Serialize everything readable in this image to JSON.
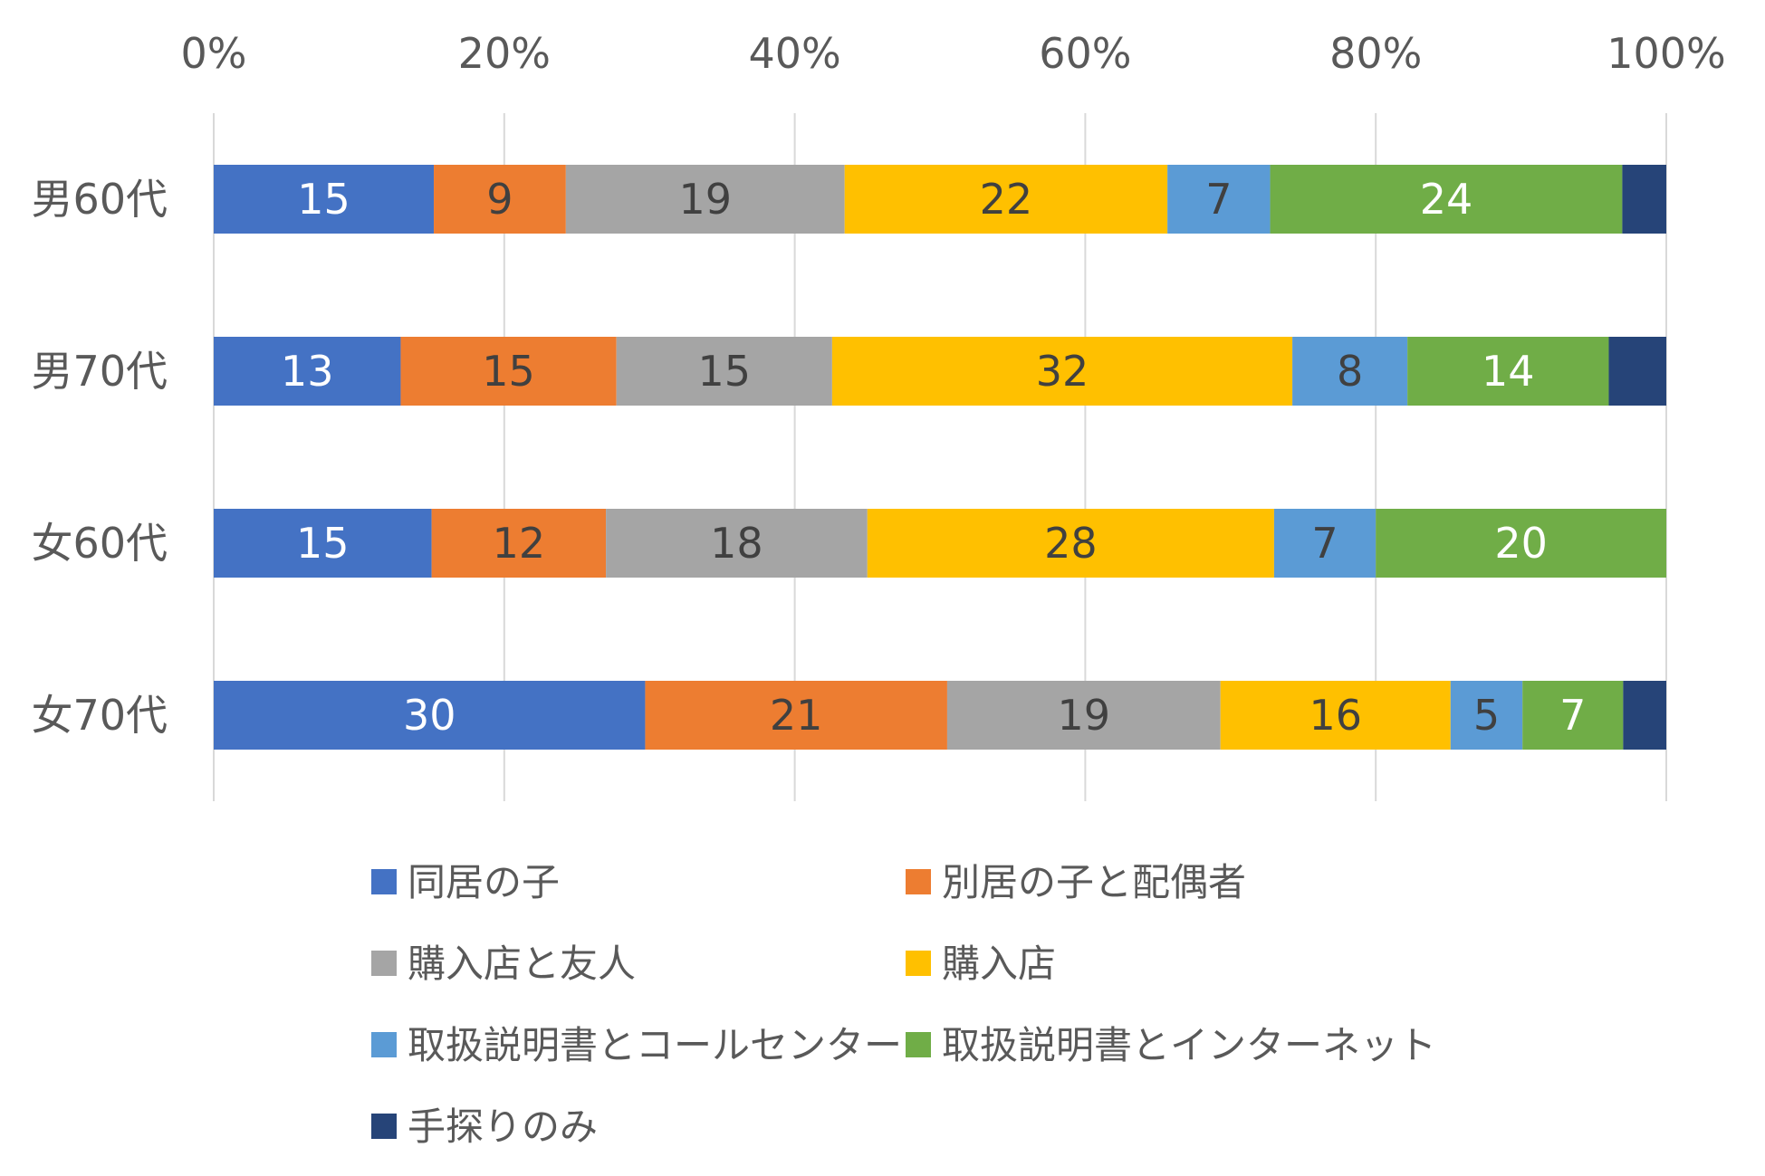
{
  "chart_data": {
    "type": "bar",
    "orientation": "horizontal",
    "stacked": "percent",
    "categories": [
      "男60代",
      "男70代",
      "女60代",
      "女70代"
    ],
    "series": [
      {
        "name": "同居の子",
        "color": "#4472C4",
        "label_color": "#ffffff",
        "values": [
          15,
          13,
          15,
          30
        ]
      },
      {
        "name": "別居の子と配偶者",
        "color": "#ED7D31",
        "label_color": "#404040",
        "values": [
          9,
          15,
          12,
          21
        ]
      },
      {
        "name": "購入店と友人",
        "color": "#A5A5A5",
        "label_color": "#404040",
        "values": [
          19,
          15,
          18,
          19
        ]
      },
      {
        "name": "購入店",
        "color": "#FFC000",
        "label_color": "#404040",
        "values": [
          22,
          32,
          28,
          16
        ]
      },
      {
        "name": "取扱説明書とコールセンター",
        "color": "#5B9BD5",
        "label_color": "#404040",
        "values": [
          7,
          8,
          7,
          5
        ]
      },
      {
        "name": "取扱説明書とインターネット",
        "color": "#70AD47",
        "label_color": "#ffffff",
        "values": [
          24,
          14,
          20,
          7
        ]
      },
      {
        "name": "手探りのみ",
        "color": "#264478",
        "label_color": "#ffffff",
        "values": [
          3,
          4,
          0,
          3
        ],
        "show_labels": false
      }
    ],
    "x_ticks": [
      "0%",
      "20%",
      "40%",
      "60%",
      "80%",
      "100%"
    ],
    "xlim": [
      0,
      100
    ],
    "x_axis_position": "top",
    "grid": true,
    "legend_position": "bottom"
  }
}
